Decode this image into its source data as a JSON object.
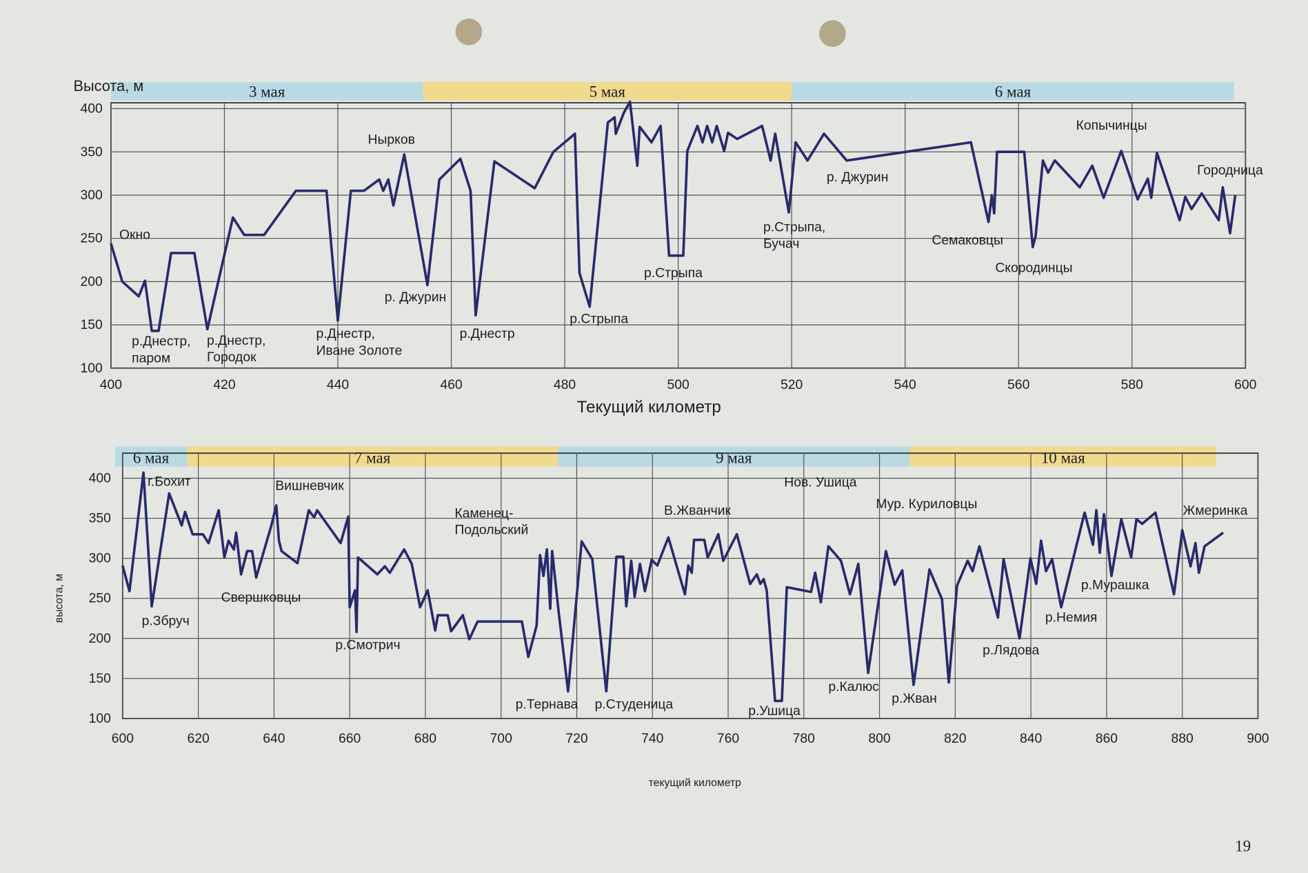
{
  "chart_data": [
    {
      "type": "line",
      "y_label": "Высота, м",
      "x_label": "Текущий километр",
      "periods": [
        {
          "label": "3 мая",
          "start": 400,
          "end": 455,
          "color": "#b9d9e3"
        },
        {
          "label": "5 мая",
          "start": 455,
          "end": 520,
          "color": "#f0da8e"
        },
        {
          "label": "6 мая",
          "start": 520,
          "end": 598,
          "color": "#b9d9e3"
        }
      ],
      "x": [
        400,
        402,
        404.9,
        406,
        407.2,
        408.4,
        410.6,
        414.7,
        417,
        421.5,
        423.5,
        427,
        432.6,
        438,
        440,
        442.3,
        444.6,
        447.3,
        448,
        448.9,
        449.8,
        451.7,
        455.8,
        457.9,
        461.6,
        463.4,
        464.3,
        467.6,
        474.7,
        478,
        481.8,
        482.6,
        484.4,
        487.6,
        488.8,
        489,
        490.4,
        491.5,
        492.8,
        493.2,
        495.3,
        496.9,
        498.4,
        500.9,
        501.6,
        503.4,
        504.3,
        505.1,
        506,
        506.8,
        508.1,
        508.8,
        510.4,
        514.8,
        516.3,
        517.1,
        519.5,
        520.7,
        522.8,
        525.7,
        529.7,
        551.6,
        554.7,
        555.3,
        555.7,
        556.2,
        561,
        562.5,
        563,
        564.3,
        565.2,
        566.4,
        570.8,
        573,
        575,
        578.1,
        581,
        582.8,
        583.4,
        584.4,
        588.4,
        589.4,
        590.5,
        592.3,
        595.3,
        596,
        597.3,
        598.2
      ],
      "series": [
        {
          "color": "#272b6b",
          "values": [
            244,
            200,
            183,
            201,
            143,
            143,
            233,
            233,
            145,
            274,
            254,
            254,
            305,
            305,
            155,
            305,
            305,
            318,
            305,
            318,
            288,
            347,
            196,
            318,
            342,
            305,
            161,
            339,
            308,
            350,
            371,
            210,
            171,
            384,
            390,
            371,
            395,
            408,
            334,
            379,
            361,
            380,
            230,
            230,
            351,
            380,
            361,
            380,
            361,
            380,
            351,
            372,
            365,
            380,
            340,
            371,
            280,
            361,
            340,
            371,
            340,
            361,
            269,
            300,
            279,
            350,
            350,
            240,
            252,
            340,
            326,
            340,
            309,
            334,
            297,
            351,
            295,
            319,
            297,
            349,
            271,
            298,
            284,
            302,
            271,
            309,
            256,
            300
          ]
        }
      ],
      "xlim": [
        400,
        600
      ],
      "ylim": [
        100,
        400
      ],
      "xticks": [
        400,
        420,
        440,
        460,
        480,
        500,
        520,
        540,
        560,
        580,
        600
      ],
      "yticks": [
        100,
        150,
        200,
        250,
        300,
        350,
        400
      ],
      "grid": true,
      "annotations": [
        [
          "Окно"
        ],
        [
          "р.Днестр,",
          "паром"
        ],
        [
          "р.Днестр,",
          "Городок"
        ],
        [
          "Нырков"
        ],
        [
          "р.Днестр,",
          "Иване Золоте"
        ],
        [
          "р. Джурин"
        ],
        [
          "р.Днестр"
        ],
        [
          "р.Стрыпа"
        ],
        [
          "р.Стрыпа"
        ],
        [
          "р.Стрыпа,",
          "Бучач"
        ],
        [
          "р. Джурин"
        ],
        [
          "Семаковцы"
        ],
        [
          "Скородинцы"
        ],
        [
          "Копычинцы"
        ],
        [
          "Городница"
        ]
      ]
    },
    {
      "type": "line",
      "y_label": "высота, м",
      "x_label": "текущий километр",
      "periods": [
        {
          "label": "6 мая",
          "start": 598,
          "end": 617,
          "color": "#b9d9e3"
        },
        {
          "label": "7 мая",
          "start": 617,
          "end": 715,
          "color": "#f0da8e"
        },
        {
          "label": "9 мая",
          "start": 715,
          "end": 808,
          "color": "#b9d9e3"
        },
        {
          "label": "10 мая",
          "start": 808,
          "end": 889,
          "color": "#f0da8e"
        }
      ],
      "x": [
        600,
        601.8,
        605.5,
        607.7,
        612.3,
        615.6,
        616.5,
        618.5,
        621.2,
        622.7,
        625.4,
        626.9,
        628,
        629.4,
        630,
        631.3,
        632.9,
        634.2,
        635.3,
        639.3,
        640.6,
        641.3,
        642,
        646.2,
        649.2,
        650.6,
        651.4,
        657.6,
        659.6,
        660,
        661.4,
        661.8,
        662.2,
        667.3,
        669.3,
        670.6,
        674.4,
        676.4,
        678.6,
        680.6,
        682.6,
        683.3,
        685.9,
        686.8,
        689.9,
        691.6,
        693.8,
        705.5,
        707.2,
        709.4,
        710.3,
        711.2,
        712.1,
        713,
        713.5,
        715.2,
        717.7,
        721.3,
        724.1,
        727.8,
        730.5,
        732.3,
        733.1,
        734.4,
        735.3,
        736.7,
        738,
        739.8,
        741.3,
        744.2,
        748.6,
        749.5,
        750.4,
        751,
        753.7,
        754.6,
        757.4,
        758.7,
        762.3,
        765.8,
        767.6,
        768.5,
        769.4,
        770.2,
        772.4,
        774.2,
        775.5,
        781.9,
        783,
        784.5,
        786.5,
        789.8,
        792.2,
        794.4,
        797,
        801.7,
        804,
        806,
        809,
        813.2,
        816.5,
        818.3,
        820.5,
        823.3,
        824.6,
        826.4,
        831.3,
        832.8,
        837,
        839.9,
        841.4,
        842.7,
        844,
        845.6,
        848,
        854.2,
        856.4,
        857.3,
        858.2,
        859.3,
        861.3,
        863.9,
        866.5,
        867.9,
        869.4,
        872.9,
        877.8,
        880,
        882.2,
        883.5,
        884.4,
        885.9,
        890.8
      ],
      "series": [
        {
          "color": "#272b6b",
          "values": [
            291,
            259,
            407,
            240,
            381,
            341,
            358,
            330,
            330,
            319,
            360,
            301,
            322,
            311,
            332,
            280,
            309,
            309,
            276,
            341,
            366,
            322,
            309,
            294,
            360,
            351,
            360,
            319,
            352,
            239,
            260,
            208,
            301,
            280,
            290,
            282,
            311,
            293,
            239,
            260,
            210,
            229,
            229,
            209,
            229,
            199,
            221,
            221,
            177,
            216,
            304,
            278,
            311,
            237,
            309,
            234,
            134,
            321,
            299,
            134,
            302,
            302,
            240,
            297,
            252,
            293,
            259,
            298,
            291,
            326,
            255,
            291,
            282,
            323,
            323,
            301,
            330,
            297,
            330,
            268,
            280,
            268,
            274,
            260,
            122,
            122,
            264,
            258,
            282,
            245,
            315,
            297,
            255,
            293,
            157,
            309,
            267,
            285,
            142,
            286,
            249,
            145,
            266,
            297,
            284,
            315,
            226,
            299,
            200,
            300,
            268,
            322,
            284,
            299,
            239,
            357,
            317,
            360,
            307,
            355,
            278,
            349,
            301,
            349,
            343,
            357,
            255,
            335,
            290,
            319,
            282,
            315,
            332
          ]
        }
      ],
      "xlim": [
        600,
        900
      ],
      "ylim": [
        100,
        400
      ],
      "xticks": [
        600,
        620,
        640,
        660,
        680,
        700,
        720,
        740,
        760,
        780,
        800,
        820,
        840,
        860,
        880,
        900
      ],
      "yticks": [
        100,
        150,
        200,
        250,
        300,
        350,
        400
      ],
      "grid": true,
      "annotations": [
        [
          "г.Бохит"
        ],
        [
          "Вишневчик"
        ],
        [
          "р.Збруч"
        ],
        [
          "Свершковцы"
        ],
        [
          "р.Смотрич"
        ],
        [
          "Каменец-",
          "Подольский"
        ],
        [
          "р.Тернава"
        ],
        [
          "р.Студеница"
        ],
        [
          "В.Жванчик"
        ],
        [
          "Нов. Ушица"
        ],
        [
          "Мур. Куриловцы"
        ],
        [
          "Жмеринка"
        ],
        [
          "р.Мурашка"
        ],
        [
          "р.Немия"
        ],
        [
          "р.Лядова"
        ],
        [
          "р.Калюс"
        ],
        [
          "р.Жван"
        ],
        [
          "р.Ушица"
        ]
      ]
    }
  ],
  "page_number": "19"
}
